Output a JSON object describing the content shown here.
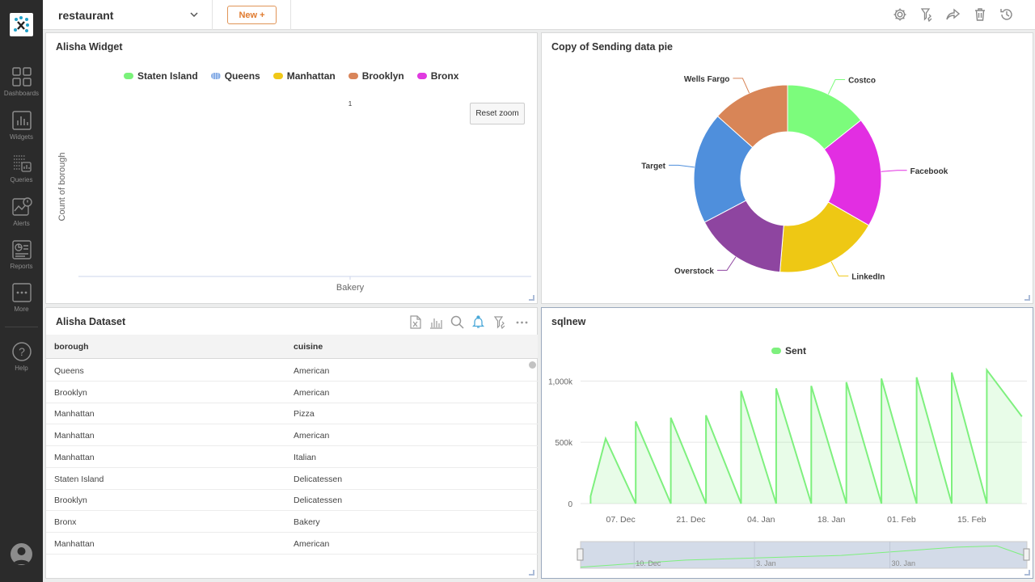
{
  "topbar": {
    "dashboard_name": "restaurant",
    "new_button": "New +"
  },
  "sidebar": {
    "items": [
      {
        "label": "Dashboards",
        "icon": "dashboards-icon"
      },
      {
        "label": "Widgets",
        "icon": "widgets-icon"
      },
      {
        "label": "Queries",
        "icon": "queries-icon"
      },
      {
        "label": "Alerts",
        "icon": "alerts-icon"
      },
      {
        "label": "Reports",
        "icon": "reports-icon"
      },
      {
        "label": "More",
        "icon": "more-icon"
      },
      {
        "label": "Help",
        "icon": "help-icon"
      }
    ]
  },
  "widgets": {
    "alisha": {
      "title": "Alisha Widget",
      "reset_zoom": "Reset zoom",
      "legend": [
        {
          "name": "Staten Island",
          "color": "#7af27a"
        },
        {
          "name": "Queens",
          "color": "#88aee6"
        },
        {
          "name": "Manhattan",
          "color": "#f0c818"
        },
        {
          "name": "Brooklyn",
          "color": "#d9855a"
        },
        {
          "name": "Bronx",
          "color": "#e03ae0"
        }
      ],
      "ylabel": "Count of borough",
      "category": "Bakery",
      "data_label": "1"
    },
    "pie": {
      "title": "Copy of Sending data pie"
    },
    "dataset": {
      "title": "Alisha Dataset",
      "columns": [
        "borough",
        "cuisine"
      ],
      "rows": [
        [
          "Queens",
          "American"
        ],
        [
          "Brooklyn",
          "American"
        ],
        [
          "Manhattan",
          "Pizza"
        ],
        [
          "Manhattan",
          "American"
        ],
        [
          "Manhattan",
          "Italian"
        ],
        [
          "Staten Island",
          "Delicatessen"
        ],
        [
          "Brooklyn",
          "Delicatessen"
        ],
        [
          "Bronx",
          "Bakery"
        ],
        [
          "Manhattan",
          "American"
        ]
      ]
    },
    "sqlnew": {
      "title": "sqlnew",
      "legend": "Sent",
      "y_ticks": [
        "0",
        "500k",
        "1,000k"
      ],
      "x_ticks": [
        "07. Dec",
        "21. Dec",
        "04. Jan",
        "18. Jan",
        "01. Feb",
        "15. Feb"
      ],
      "navigator_ticks": [
        "10. Dec",
        "3. Jan",
        "30. Jan"
      ]
    }
  },
  "chart_data": [
    {
      "type": "bar",
      "title": "Alisha Widget",
      "categories": [
        "Bakery"
      ],
      "ylabel": "Count of borough",
      "series": [
        {
          "name": "Staten Island",
          "values": [
            0
          ]
        },
        {
          "name": "Queens",
          "values": [
            0
          ]
        },
        {
          "name": "Manhattan",
          "values": [
            0
          ]
        },
        {
          "name": "Brooklyn",
          "values": [
            0
          ]
        },
        {
          "name": "Bronx",
          "values": [
            1
          ]
        }
      ]
    },
    {
      "type": "pie",
      "title": "Copy of Sending data pie",
      "slices": [
        {
          "label": "Costco",
          "value": 14.3,
          "color": "#7cfc7c"
        },
        {
          "label": "Facebook",
          "value": 19.0,
          "color": "#e22ee2"
        },
        {
          "label": "LinkedIn",
          "value": 18.0,
          "color": "#eec814"
        },
        {
          "label": "Overstock",
          "value": 16.0,
          "color": "#8e45a0"
        },
        {
          "label": "Target",
          "value": 19.3,
          "color": "#4f8fdc"
        },
        {
          "label": "Wells Fargo",
          "value": 13.4,
          "color": "#d88557"
        }
      ]
    },
    {
      "type": "area",
      "title": "sqlnew",
      "series": [
        {
          "name": "Sent",
          "color": "#7ef07e",
          "x": [
            "2020-12-01",
            "2020-12-01",
            "2020-12-04",
            "2020-12-10",
            "2020-12-10",
            "2020-12-17",
            "2020-12-17",
            "2020-12-24",
            "2020-12-24",
            "2020-12-31",
            "2020-12-31",
            "2021-01-07",
            "2021-01-07",
            "2021-01-14",
            "2021-01-14",
            "2021-01-21",
            "2021-01-21",
            "2021-01-28",
            "2021-01-28",
            "2021-02-04",
            "2021-02-04",
            "2021-02-11",
            "2021-02-11",
            "2021-02-18",
            "2021-02-18",
            "2021-02-25"
          ],
          "y": [
            0,
            60000,
            530000,
            0,
            670000,
            0,
            700000,
            0,
            720000,
            0,
            920000,
            0,
            940000,
            0,
            960000,
            0,
            990000,
            0,
            1020000,
            0,
            1030000,
            0,
            1070000,
            0,
            1090000,
            710000
          ]
        }
      ],
      "y_ticks": [
        "0",
        "500k",
        "1,000k"
      ],
      "x_ticks": [
        "07. Dec",
        "21. Dec",
        "04. Jan",
        "18. Jan",
        "01. Feb",
        "15. Feb"
      ],
      "ylim": [
        0,
        1200000
      ]
    }
  ]
}
